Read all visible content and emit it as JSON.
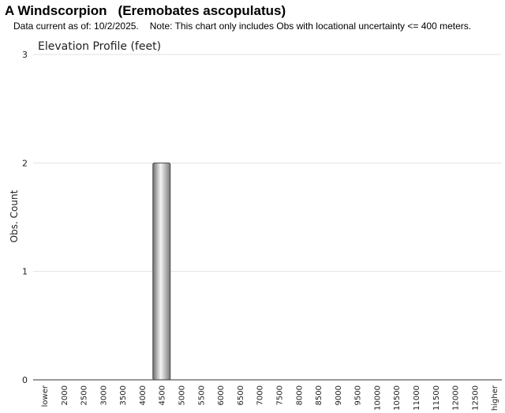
{
  "header": {
    "common_name": "A Windscorpion",
    "scientific_name": "(Eremobates ascopulatus)",
    "data_current": "Data current as of: 10/2/2025.",
    "note": "Note: This chart only includes Obs with locational uncertainty <= 400 meters."
  },
  "chart_data": {
    "type": "bar",
    "title": "Elevation Profile (feet)",
    "xlabel": "",
    "ylabel": "Obs. Count",
    "ylim": [
      0,
      3
    ],
    "yticks": [
      0,
      1,
      2,
      3
    ],
    "grid": true,
    "legend": "none",
    "categories": [
      "lower",
      "2000",
      "2500",
      "3000",
      "3500",
      "4000",
      "4500",
      "5000",
      "5500",
      "6000",
      "6500",
      "7000",
      "7500",
      "8000",
      "8500",
      "9000",
      "9500",
      "10000",
      "10500",
      "11000",
      "11500",
      "12000",
      "12500",
      "higher"
    ],
    "values": [
      0,
      0,
      0,
      0,
      0,
      0,
      2,
      0,
      0,
      0,
      0,
      0,
      0,
      0,
      0,
      0,
      0,
      0,
      0,
      0,
      0,
      0,
      0,
      0
    ],
    "bar_color": "#9a9a9a"
  }
}
